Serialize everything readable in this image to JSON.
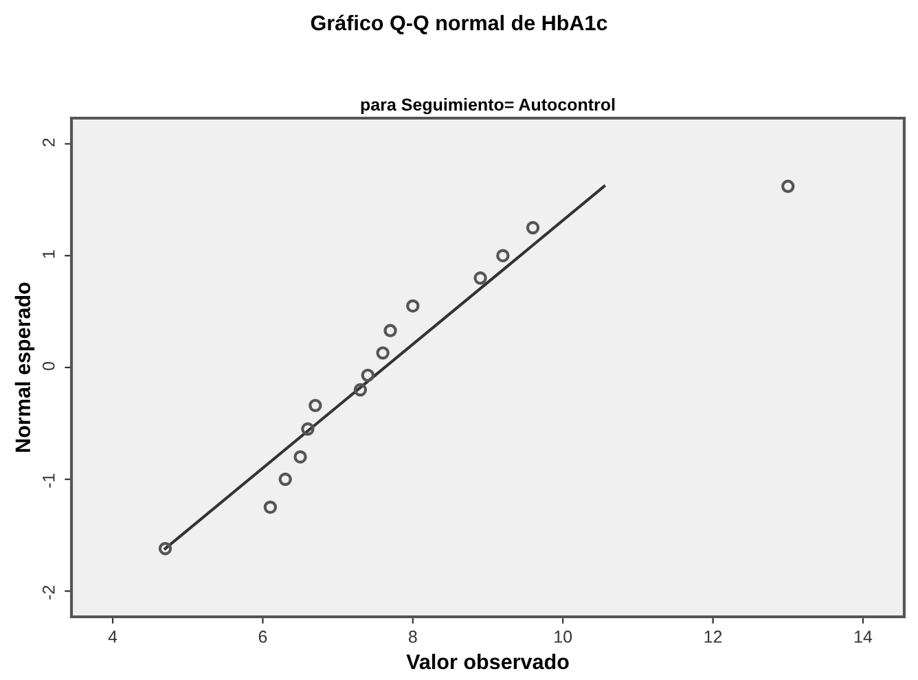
{
  "chart_data": {
    "type": "scatter",
    "title": "Gráfico Q-Q normal de HbA1c",
    "subtitle": "para Seguimiento= Autocontrol",
    "xlabel": "Valor observado",
    "ylabel": "Normal esperado",
    "series": [
      {
        "color": "#555555",
        "marker": "circle",
        "x": [
          4.7,
          6.1,
          6.3,
          6.5,
          6.6,
          6.7,
          7.3,
          7.4,
          7.6,
          7.7,
          8.0,
          8.9,
          9.2,
          9.6,
          13.0
        ],
        "values": [
          -1.62,
          -1.25,
          -1.0,
          -0.8,
          -0.55,
          -0.34,
          -0.2,
          -0.07,
          0.13,
          0.33,
          0.55,
          0.8,
          1.0,
          1.25,
          1.62
        ]
      },
      {
        "type": "line",
        "color": "#333333",
        "x": [
          4.7,
          10.55
        ],
        "values": [
          -1.62,
          1.62
        ]
      }
    ],
    "xlim": [
      3.45,
      14.55
    ],
    "ylim": [
      -2.23,
      2.23
    ],
    "xticks": [
      4,
      6,
      8,
      10,
      12,
      14
    ],
    "yticks": [
      -2,
      -1,
      0,
      1,
      2
    ],
    "grid": false,
    "legend": false
  }
}
